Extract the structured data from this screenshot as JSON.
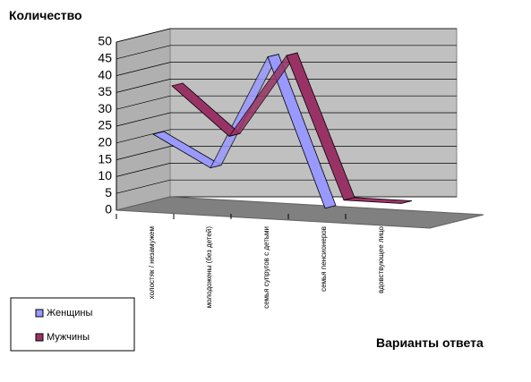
{
  "chart_data": {
    "type": "line3d",
    "y_label": "Количество",
    "x_label": "Варианты ответа",
    "categories": [
      "холостяк / незамужем",
      "молодожены (без детей)",
      "семья супругов с детьми",
      "семья пенсионеров",
      "вдовствующее лицо"
    ],
    "series": [
      {
        "name": "Женщины",
        "color": "#9999ff",
        "values": [
          22,
          12,
          45,
          0,
          null
        ]
      },
      {
        "name": "Мужчины",
        "color": "#993366",
        "values": [
          35,
          20,
          44,
          1,
          0
        ]
      }
    ],
    "ylim": [
      0,
      50
    ],
    "yticks": [
      0,
      5,
      10,
      15,
      20,
      25,
      30,
      35,
      40,
      45,
      50
    ],
    "grid": true,
    "legend": "bottom-left"
  }
}
